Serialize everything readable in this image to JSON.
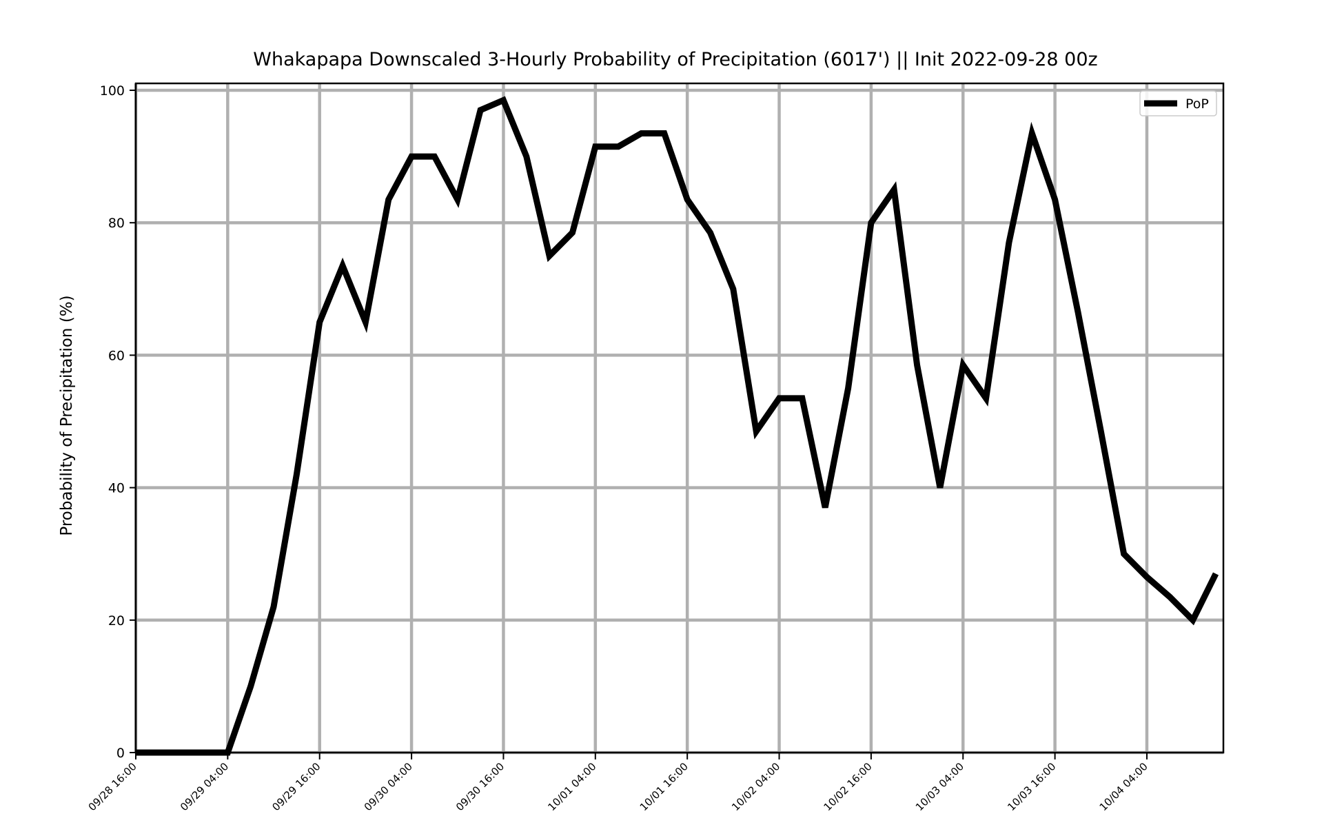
{
  "chart_data": {
    "type": "line",
    "title": "Whakapapa Downscaled 3-Hourly Probability of Precipitation (6017') || Init 2022-09-28 00z",
    "ylabel": "Probability of Precipitation (%)",
    "xlabel": "",
    "ylim": [
      0,
      100
    ],
    "yticks": [
      0,
      20,
      40,
      60,
      80,
      100
    ],
    "xticks": [
      "09/28 16:00",
      "09/29 04:00",
      "09/29 16:00",
      "09/30 04:00",
      "09/30 16:00",
      "10/01 04:00",
      "10/01 16:00",
      "10/02 04:00",
      "10/02 16:00",
      "10/03 04:00",
      "10/03 16:00",
      "10/04 04:00"
    ],
    "grid": true,
    "legend": {
      "position": "top-right",
      "entries": [
        "PoP"
      ]
    },
    "series": [
      {
        "name": "PoP",
        "color": "#000000",
        "x": [
          "09/28 16:00",
          "09/28 19:00",
          "09/28 22:00",
          "09/29 01:00",
          "09/29 04:00",
          "09/29 07:00",
          "09/29 10:00",
          "09/29 13:00",
          "09/29 16:00",
          "09/29 19:00",
          "09/29 22:00",
          "09/30 01:00",
          "09/30 04:00",
          "09/30 07:00",
          "09/30 10:00",
          "09/30 13:00",
          "09/30 16:00",
          "09/30 19:00",
          "09/30 22:00",
          "10/01 01:00",
          "10/01 04:00",
          "10/01 07:00",
          "10/01 10:00",
          "10/01 13:00",
          "10/01 16:00",
          "10/01 19:00",
          "10/01 22:00",
          "10/02 01:00",
          "10/02 04:00",
          "10/02 07:00",
          "10/02 10:00",
          "10/02 13:00",
          "10/02 16:00",
          "10/02 19:00",
          "10/02 22:00",
          "10/03 01:00",
          "10/03 04:00",
          "10/03 07:00",
          "10/03 10:00",
          "10/03 13:00",
          "10/03 16:00",
          "10/03 19:00",
          "10/03 22:00",
          "10/04 01:00",
          "10/04 04:00",
          "10/04 07:00",
          "10/04 10:00",
          "10/04 13:00"
        ],
        "values": [
          0,
          0,
          0,
          0,
          0,
          10,
          22,
          42,
          65,
          73.5,
          65,
          83.5,
          90,
          90,
          83.5,
          97,
          98.5,
          90,
          75,
          78.5,
          91.5,
          91.5,
          93.5,
          93.5,
          83.5,
          78.5,
          70,
          48.5,
          53.5,
          53.5,
          37,
          55,
          80,
          85,
          58.5,
          40,
          58.5,
          53.5,
          77,
          93.5,
          83.5,
          66.5,
          48.5,
          30,
          26.5,
          23.5,
          20,
          27
        ]
      }
    ]
  }
}
